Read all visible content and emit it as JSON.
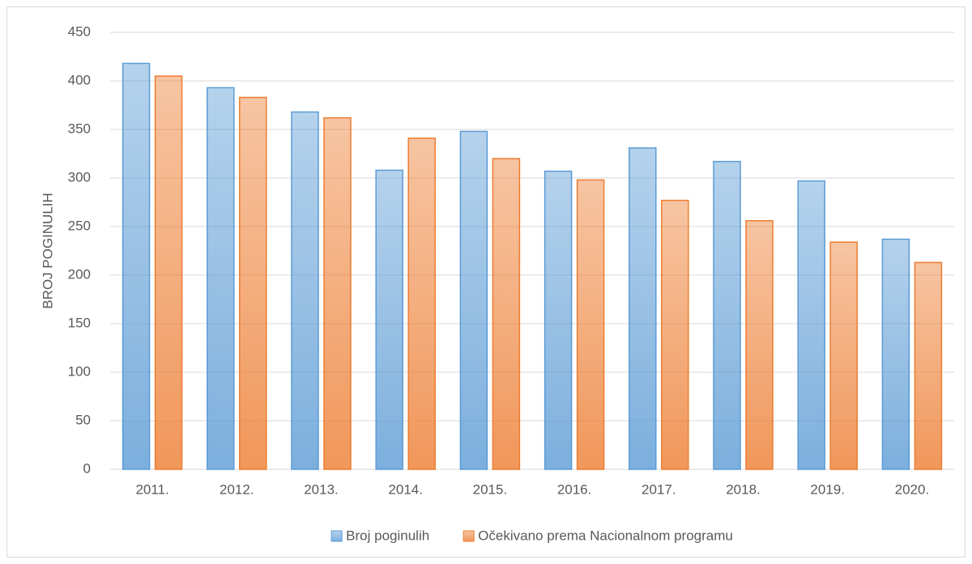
{
  "chart_data": {
    "type": "bar",
    "categories": [
      "2011.",
      "2012.",
      "2013.",
      "2014.",
      "2015.",
      "2016.",
      "2017.",
      "2018.",
      "2019.",
      "2020."
    ],
    "series": [
      {
        "name": "Broj poginulih",
        "color": "#5b9bd5",
        "values": [
          418,
          393,
          368,
          308,
          348,
          307,
          331,
          317,
          297,
          237
        ]
      },
      {
        "name": "Očekivano prema Nacionalnom programu",
        "color": "#ed7d31",
        "values": [
          405,
          383,
          362,
          341,
          320,
          298,
          277,
          256,
          234,
          213
        ]
      }
    ],
    "y_label": "BROJ POGINULIH",
    "ylim": [
      0,
      450
    ],
    "yticks": [
      0,
      50,
      100,
      150,
      200,
      250,
      300,
      350,
      400,
      450
    ],
    "grid": true,
    "legend": "bottom"
  }
}
